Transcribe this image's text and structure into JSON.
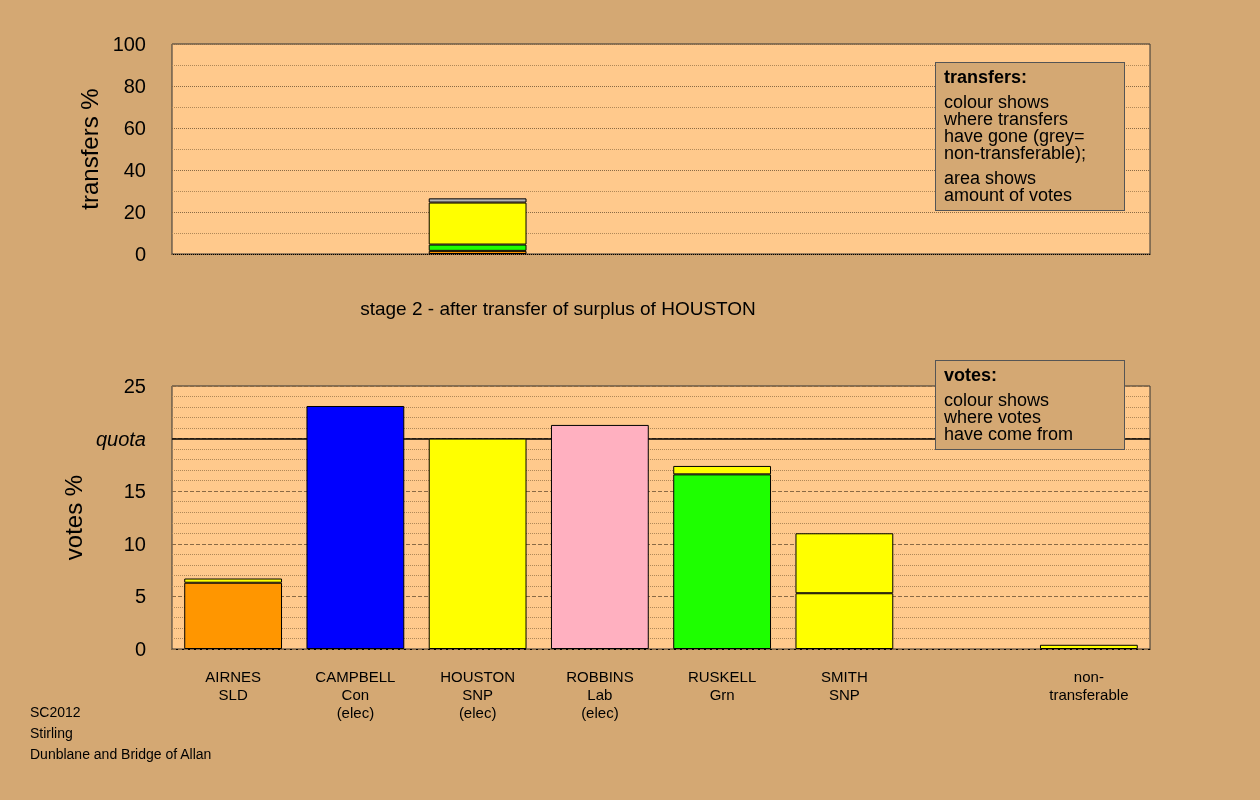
{
  "chart_data": [
    {
      "type": "bar",
      "ylabel": "transfers %",
      "stacked": true,
      "tick_labels": "y",
      "grid": "y",
      "categories": [
        null,
        null,
        null,
        null,
        null,
        null,
        null,
        null
      ],
      "series": [
        {
          "color": "#ff9600",
          "values": [
            null,
            null,
            1.5,
            null,
            null,
            null,
            null,
            null
          ]
        },
        {
          "color": "#1eff00",
          "values": [
            null,
            null,
            3,
            null,
            null,
            null,
            null,
            null
          ]
        },
        {
          "color": "#ffff00",
          "values": [
            null,
            null,
            20,
            null,
            null,
            null,
            null,
            null
          ]
        },
        {
          "color": "#b4b4b4",
          "values": [
            null,
            null,
            2,
            null,
            null,
            null,
            null,
            null
          ]
        }
      ],
      "ylim": [
        0,
        100
      ],
      "yticks": [
        0,
        {
          "value": 10,
          "label": null
        },
        20,
        {
          "value": 30,
          "label": null
        },
        40,
        {
          "value": 50,
          "label": null
        },
        60,
        {
          "value": 70,
          "label": null
        },
        80,
        {
          "value": 90,
          "label": null
        },
        100
      ],
      "annotations": [
        "transfers:",
        "colour shows\nwhere transfers\nhave gone (grey=\nnon-transferable);",
        "area shows\namount of votes"
      ]
    },
    {
      "type": "bar",
      "title": "stage 2 - after transfer of surplus of HOUSTON",
      "ylabel": "votes %",
      "stacked": true,
      "grid": "y",
      "categories": [
        "AIRNES\nSLD",
        "CAMPBELL\nCon\n(elec)",
        "HOUSTON\nSNP\n(elec)",
        "ROBBINS\nLab\n(elec)",
        "RUSKELL\nGrn",
        "SMITH\nSNP",
        null,
        "non-\ntransferable"
      ],
      "series": [
        {
          "values": [
            6.3,
            23.1,
            20,
            21.3,
            16.6,
            5.3,
            null,
            null
          ],
          "colors": [
            "#ff9600",
            "#0000ff",
            "#ffff00",
            "#ffb0c0",
            "#1eff00",
            "#ffff00",
            null,
            null
          ]
        },
        {
          "color": "#ffff00",
          "values": [
            0.4,
            null,
            null,
            null,
            0.8,
            5.7,
            null,
            0.4
          ]
        }
      ],
      "ylim": [
        0,
        25
      ],
      "yticks": [
        0,
        {
          "value": 1,
          "label": null
        },
        {
          "value": 2,
          "label": null
        },
        {
          "value": 3,
          "label": null
        },
        {
          "value": 4,
          "label": null
        },
        5,
        {
          "value": 6,
          "label": null
        },
        {
          "value": 7,
          "label": null
        },
        {
          "value": 8,
          "label": null
        },
        {
          "value": 9,
          "label": null
        },
        10,
        {
          "value": 11,
          "label": null
        },
        {
          "value": 12,
          "label": null
        },
        {
          "value": 13,
          "label": null
        },
        {
          "value": 14,
          "label": null
        },
        15,
        {
          "value": 16,
          "label": null
        },
        {
          "value": 17,
          "label": null
        },
        {
          "value": 18,
          "label": null
        },
        {
          "value": 19,
          "label": null
        },
        {
          "value": 20,
          "label": "quota"
        },
        {
          "value": 21,
          "label": null
        },
        {
          "value": 22,
          "label": null
        },
        {
          "value": 23,
          "label": null
        },
        {
          "value": 24,
          "label": null
        },
        25
      ],
      "ref_lines": [
        {
          "axis": "y",
          "value": 20,
          "color": "#000000",
          "line_style": "solid"
        }
      ],
      "annotations": [
        "votes:",
        "colour shows\nwhere votes\nhave come from",
        "SC2012\nStirling\nDunblane and Bridge of Allan"
      ]
    }
  ]
}
